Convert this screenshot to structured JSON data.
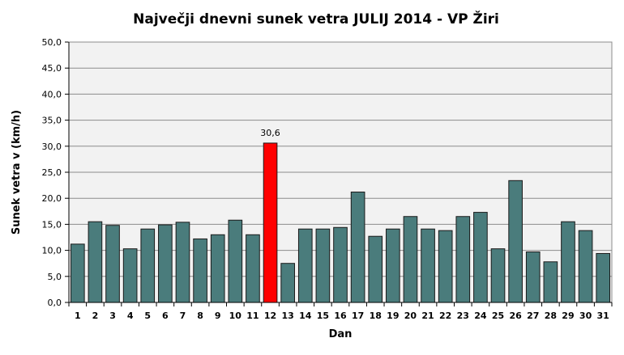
{
  "chart_data": {
    "type": "bar",
    "title": "Največji dnevni sunek vetra JULIJ 2014 - VP Žiri",
    "xlabel": "Dan",
    "ylabel": "Sunek vetra  v (km/h)",
    "ylim": [
      0,
      50
    ],
    "yticks": [
      "0,0",
      "5,0",
      "10,0",
      "15,0",
      "20,0",
      "25,0",
      "30,0",
      "35,0",
      "40,0",
      "45,0",
      "50,0"
    ],
    "grid": true,
    "categories": [
      "1",
      "2",
      "3",
      "4",
      "5",
      "6",
      "7",
      "8",
      "9",
      "10",
      "11",
      "12",
      "13",
      "14",
      "15",
      "16",
      "17",
      "18",
      "19",
      "20",
      "21",
      "22",
      "23",
      "24",
      "25",
      "26",
      "27",
      "28",
      "29",
      "30",
      "31"
    ],
    "values": [
      11.2,
      15.5,
      14.8,
      10.3,
      14.1,
      14.9,
      15.4,
      12.2,
      13.0,
      15.8,
      13.0,
      30.6,
      7.5,
      14.1,
      14.1,
      14.4,
      21.2,
      12.7,
      14.1,
      16.5,
      14.1,
      13.8,
      16.5,
      17.3,
      10.3,
      23.4,
      9.7,
      7.8,
      15.5,
      13.8,
      9.4
    ],
    "highlight_index": 11,
    "data_labels": [
      {
        "index": 11,
        "text": "30,6"
      }
    ],
    "colors": {
      "bar": "#4a7c7c",
      "bar_highlight": "#ff0000",
      "bar_stroke": "#1a1a1a",
      "plot_background": "#f2f2f2",
      "grid": "#8c8c8c"
    }
  }
}
